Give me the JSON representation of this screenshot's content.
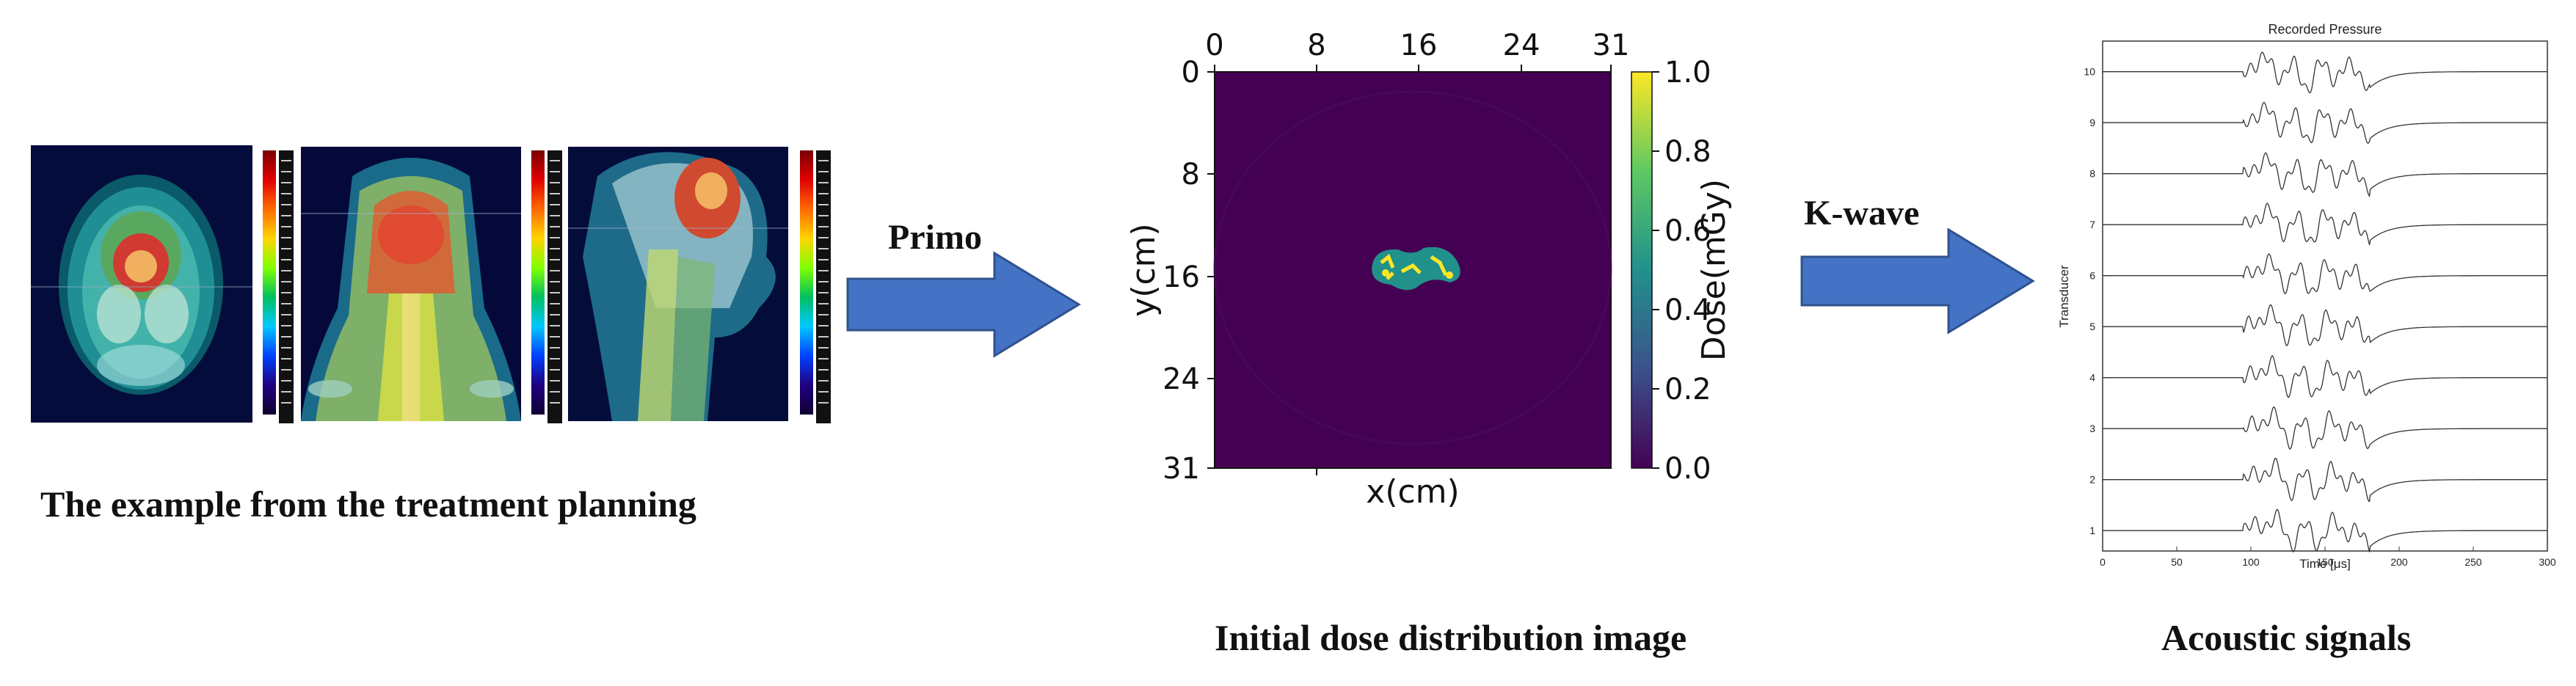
{
  "captions": {
    "planning": "The example from the treatment planning",
    "dose": "Initial dose distribution image",
    "acoustic": "Acoustic signals"
  },
  "arrows": {
    "first": "Primo",
    "second": "K-wave"
  },
  "colors": {
    "arrow_fill": "#4472c4",
    "arrow_stroke": "#2f528f",
    "dose_background": "#440154",
    "dose_high": "#fde725"
  },
  "dose_map": {
    "top_ticks": [
      "0",
      "8",
      "16",
      "24",
      "31"
    ],
    "left_ticks": [
      "0",
      "8",
      "16",
      "24",
      "31"
    ],
    "xlabel": "x(cm)",
    "ylabel": "y(cm)",
    "colorbar_label": "Dose(mGy)",
    "colorbar_ticks": [
      "1.0",
      "0.8",
      "0.6",
      "0.4",
      "0.2",
      "0.0"
    ]
  },
  "chart_data": {
    "type": "line",
    "title": "Recorded Pressure",
    "xlabel": "Time [μs]",
    "ylabel": "Transducer",
    "xlim": [
      0,
      300
    ],
    "ylim": [
      0.6,
      10.6
    ],
    "x_ticks": [
      "0",
      "50",
      "100",
      "150",
      "200",
      "250",
      "300"
    ],
    "y_ticks": [
      "1",
      "2",
      "3",
      "4",
      "5",
      "6",
      "7",
      "8",
      "9",
      "10"
    ],
    "grid": false,
    "signal_window": [
      95,
      180
    ],
    "series_count": 10
  }
}
